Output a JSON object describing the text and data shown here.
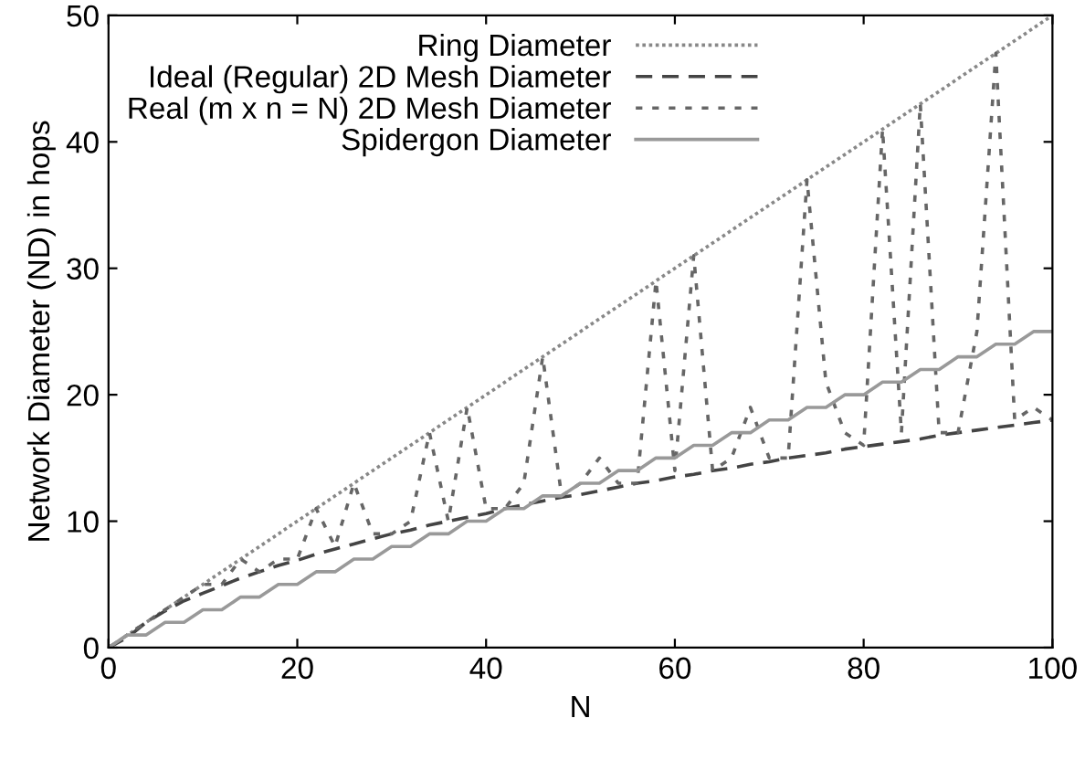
{
  "chart_data": {
    "type": "line",
    "xlabel": "N",
    "ylabel": "Network Diameter (ND) in hops",
    "x": [
      0,
      2,
      4,
      6,
      8,
      10,
      12,
      14,
      16,
      18,
      20,
      22,
      24,
      26,
      28,
      30,
      32,
      34,
      36,
      38,
      40,
      42,
      44,
      46,
      48,
      50,
      52,
      54,
      56,
      58,
      60,
      62,
      64,
      66,
      68,
      70,
      72,
      74,
      76,
      78,
      80,
      82,
      84,
      86,
      88,
      90,
      92,
      94,
      96,
      98,
      100
    ],
    "series": [
      {
        "name": "Ring Diameter",
        "color": "#888888",
        "line_style": "dotted",
        "values": [
          0,
          1,
          2,
          3,
          4,
          5,
          6,
          7,
          8,
          9,
          10,
          11,
          12,
          13,
          14,
          15,
          16,
          17,
          18,
          19,
          20,
          21,
          22,
          23,
          24,
          25,
          26,
          27,
          28,
          29,
          30,
          31,
          32,
          33,
          34,
          35,
          36,
          37,
          38,
          39,
          40,
          41,
          42,
          43,
          44,
          45,
          46,
          47,
          48,
          49,
          50
        ]
      },
      {
        "name": "Ideal (Regular) 2D Mesh Diameter",
        "color": "#444444",
        "line_style": "dashed",
        "values": [
          0,
          0.8,
          2,
          2.9,
          3.7,
          4.3,
          4.9,
          5.5,
          6,
          6.5,
          6.9,
          7.4,
          7.8,
          8.2,
          8.6,
          9,
          9.3,
          9.7,
          10,
          10.3,
          10.6,
          11,
          11.3,
          11.6,
          11.9,
          12.1,
          12.4,
          12.7,
          13,
          13.2,
          13.5,
          13.7,
          14,
          14.2,
          14.5,
          14.7,
          15,
          15.2,
          15.4,
          15.7,
          15.9,
          16.1,
          16.3,
          16.5,
          16.8,
          17,
          17.2,
          17.4,
          17.6,
          17.8,
          18
        ]
      },
      {
        "name": "Real (m x n = N) 2D Mesh Diameter",
        "color": "#666666",
        "line_style": "dashed_fine",
        "values": [
          0,
          1,
          2,
          3,
          4,
          5,
          5,
          7,
          6,
          7,
          7,
          11,
          8,
          13,
          9,
          9,
          10,
          17,
          10,
          19,
          11,
          11,
          13,
          23,
          12,
          13,
          15,
          13,
          13,
          29,
          14,
          31,
          14,
          15,
          19,
          15,
          15,
          37,
          21,
          17,
          16,
          41,
          17,
          43,
          17,
          17,
          25,
          47,
          18,
          19,
          18
        ]
      },
      {
        "name": "Spidergon Diameter",
        "color": "#999999",
        "line_style": "solid",
        "values": [
          0,
          1,
          1,
          2,
          2,
          3,
          3,
          4,
          4,
          5,
          5,
          6,
          6,
          7,
          7,
          8,
          8,
          9,
          9,
          10,
          10,
          11,
          11,
          12,
          12,
          13,
          13,
          14,
          14,
          15,
          15,
          16,
          16,
          17,
          17,
          18,
          18,
          19,
          19,
          20,
          20,
          21,
          21,
          22,
          22,
          23,
          23,
          24,
          24,
          25,
          25
        ]
      }
    ],
    "xlim": [
      0,
      100
    ],
    "ylim": [
      0,
      50
    ],
    "xticks": [
      0,
      20,
      40,
      60,
      80,
      100
    ],
    "yticks": [
      0,
      10,
      20,
      30,
      40,
      50
    ],
    "grid": false,
    "legend": "top left",
    "marker": "none"
  }
}
